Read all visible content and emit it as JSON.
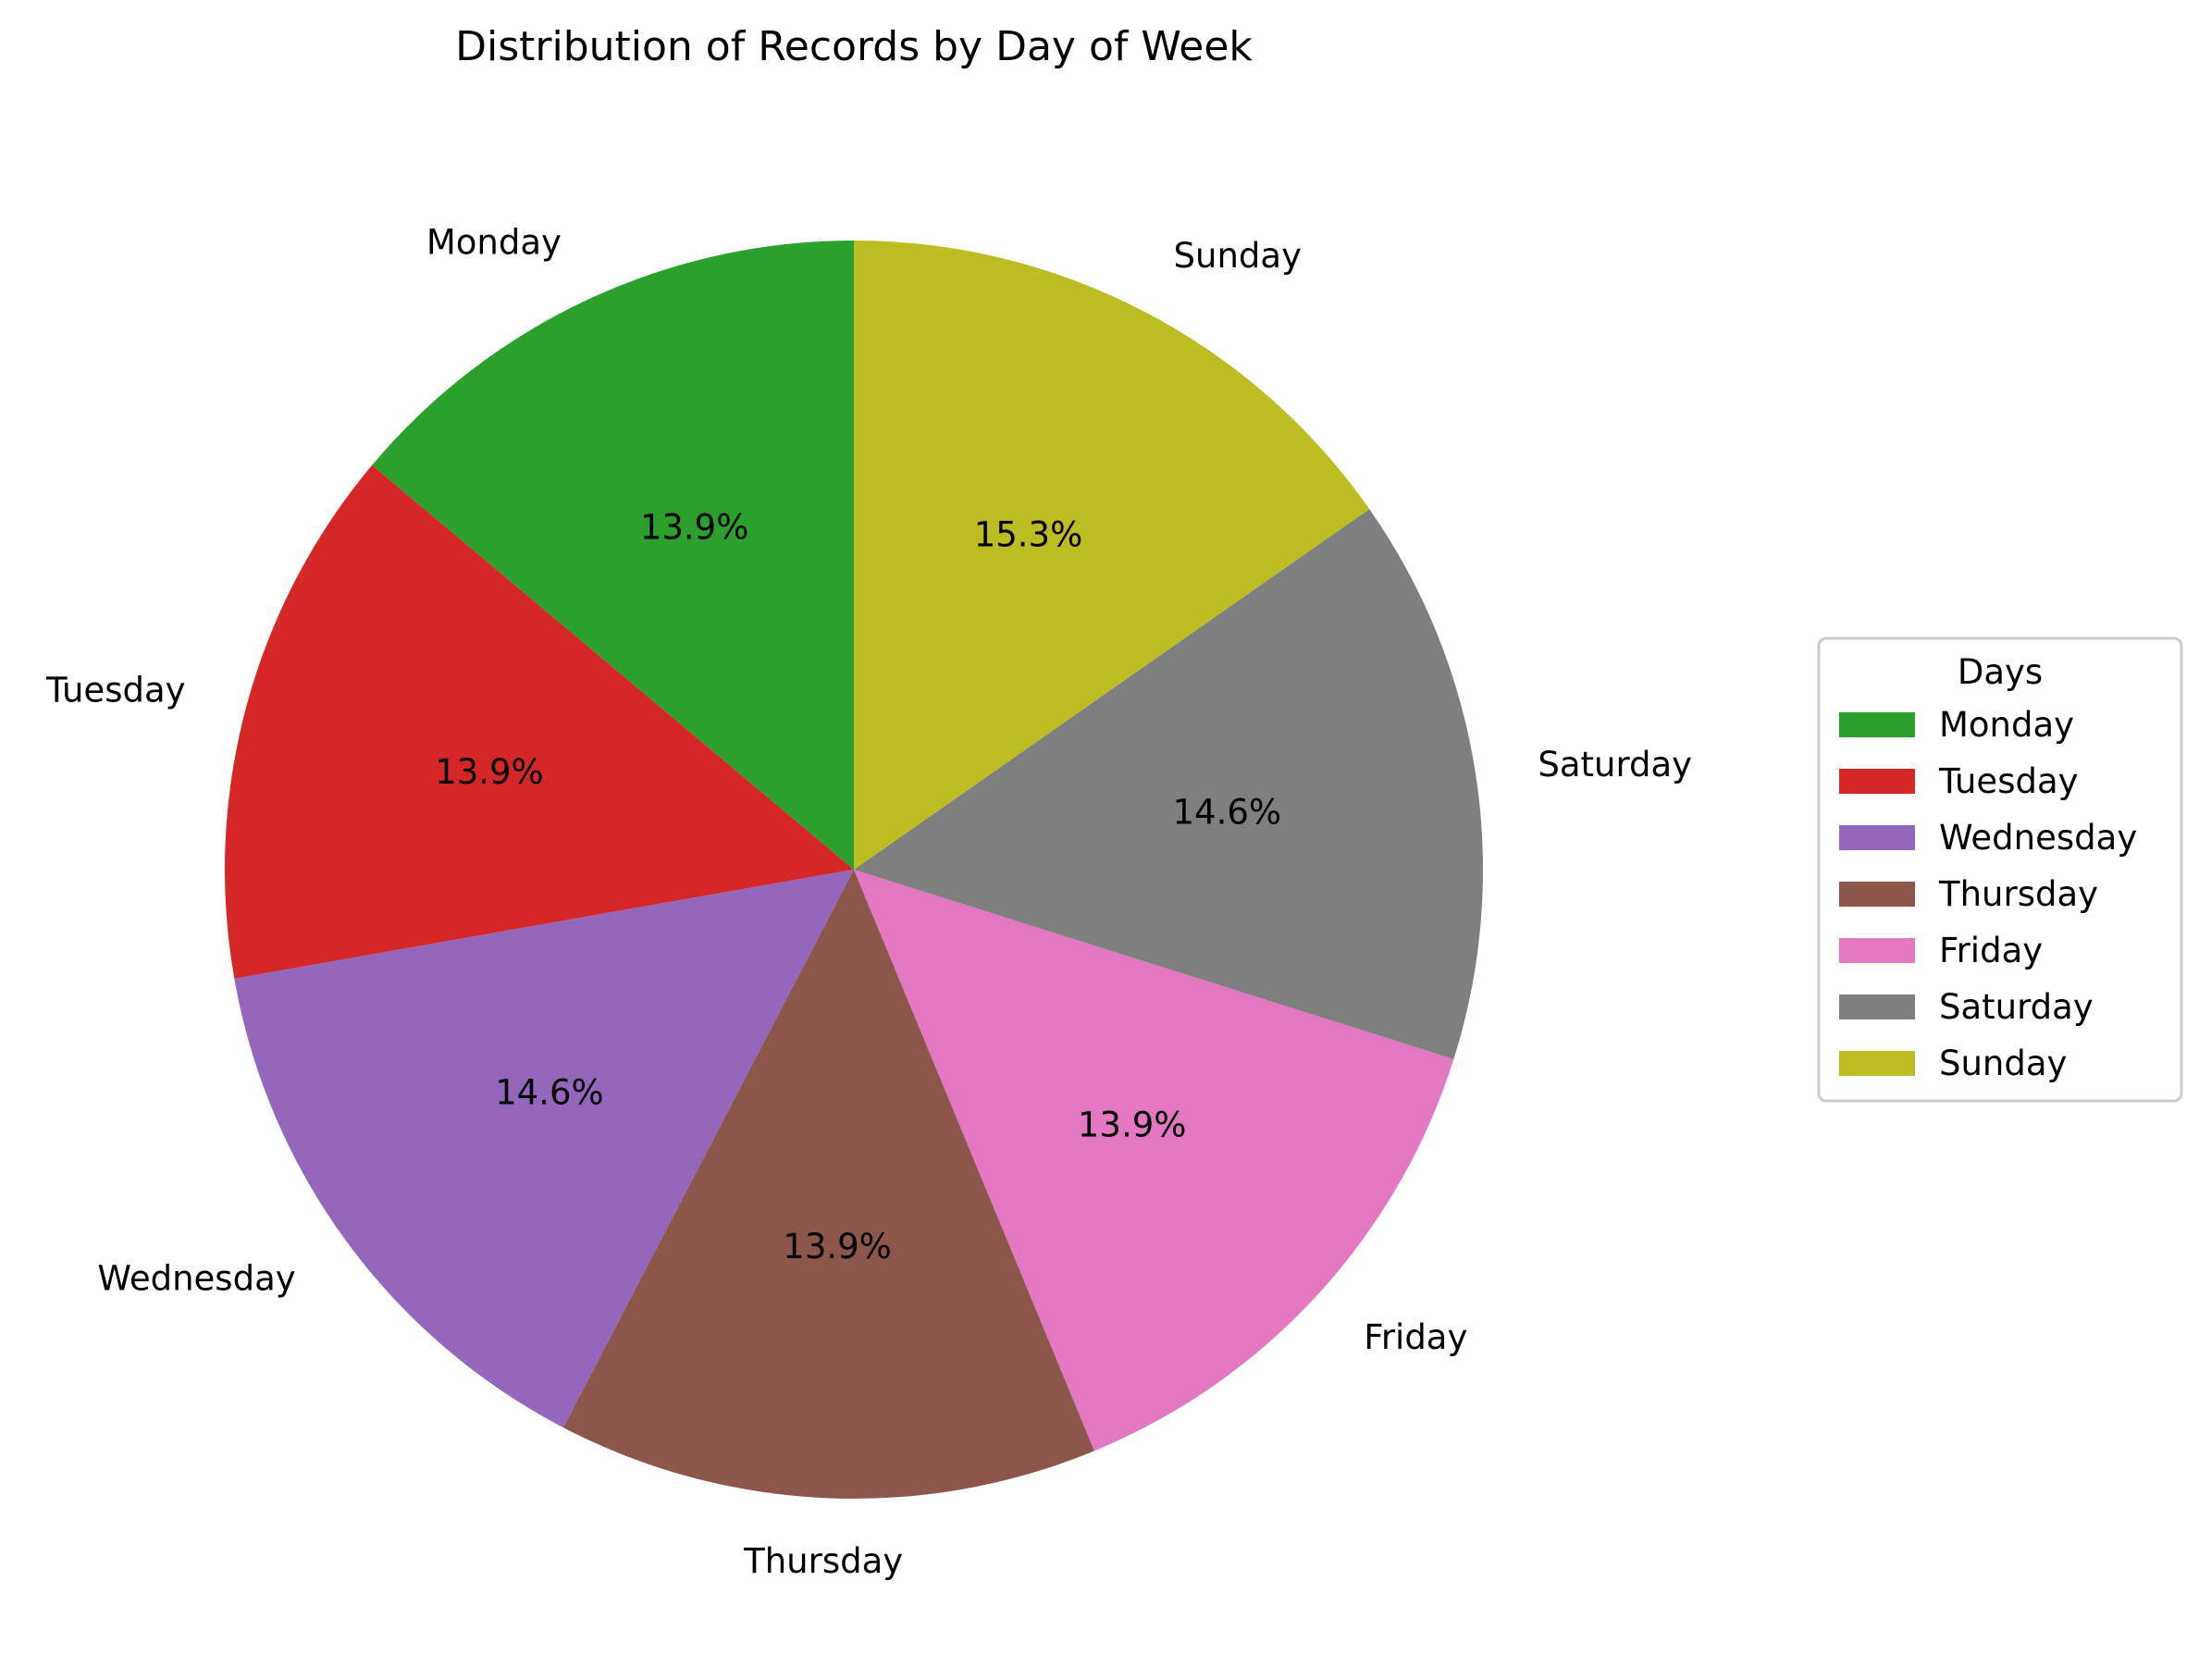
{
  "chart_data": {
    "type": "pie",
    "title": "Distribution of Records by Day of Week",
    "labels": [
      "Monday",
      "Tuesday",
      "Wednesday",
      "Thursday",
      "Friday",
      "Saturday",
      "Sunday"
    ],
    "values": [
      13.9,
      13.9,
      14.6,
      13.9,
      13.9,
      14.6,
      15.3
    ],
    "percent_labels": [
      "13.9%",
      "13.9%",
      "14.6%",
      "13.9%",
      "13.9%",
      "14.6%",
      "15.3%"
    ],
    "colors": [
      "#2ca02c",
      "#d62728",
      "#9467bd",
      "#8c564b",
      "#e377c2",
      "#7f7f7f",
      "#bcbd22"
    ],
    "start_angle_deg": 90,
    "direction": "counterclockwise",
    "legend": {
      "title": "Days",
      "placement": "center-right"
    }
  }
}
